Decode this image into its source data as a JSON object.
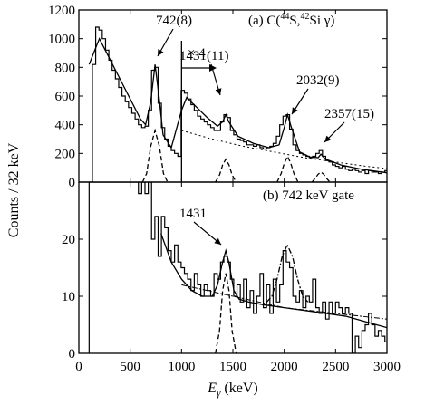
{
  "chart_data": [
    {
      "type": "line",
      "panel_label": "(a) C(",
      "panel_label_sup1": "44",
      "panel_label_mid": "S,",
      "panel_label_sup2": "42",
      "panel_label_end": "Si γ)",
      "xlim": [
        0,
        3000
      ],
      "ylim": [
        0,
        1200
      ],
      "yticks": [
        0,
        200,
        400,
        600,
        800,
        1000,
        1200
      ],
      "scale_note": "× 4",
      "scale_break_x": 1000,
      "annotations": [
        {
          "text": "742(8)",
          "x": 742,
          "y": 820
        },
        {
          "text": "1431(11)",
          "x": 1431,
          "y": 570
        },
        {
          "text": "2032(9)",
          "x": 2032,
          "y": 470
        },
        {
          "text": "2357(15)",
          "x": 2357,
          "y": 280
        }
      ],
      "series": [
        {
          "style": "histogram",
          "x": [
            100,
            132,
            164,
            196,
            228,
            260,
            292,
            324,
            356,
            388,
            420,
            452,
            484,
            516,
            548,
            580,
            612,
            644,
            676,
            708,
            740,
            772,
            804,
            836,
            868,
            900,
            932,
            964,
            996,
            1028,
            1060,
            1092,
            1124,
            1156,
            1188,
            1220,
            1252,
            1284,
            1316,
            1348,
            1380,
            1412,
            1444,
            1476,
            1508,
            1540,
            1572,
            1604,
            1636,
            1668,
            1700,
            1732,
            1764,
            1796,
            1828,
            1860,
            1892,
            1924,
            1956,
            1988,
            2020,
            2052,
            2084,
            2116,
            2148,
            2180,
            2212,
            2244,
            2276,
            2308,
            2340,
            2372,
            2404,
            2436,
            2468,
            2500,
            2532,
            2564,
            2596,
            2628,
            2660,
            2692,
            2724,
            2756,
            2788,
            2820,
            2852,
            2884,
            2916,
            2948,
            2980
          ],
          "values": [
            0,
            820,
            1080,
            1060,
            1000,
            920,
            850,
            780,
            720,
            660,
            600,
            560,
            520,
            480,
            440,
            400,
            380,
            390,
            500,
            780,
            800,
            550,
            380,
            300,
            250,
            220,
            200,
            180,
            640,
            620,
            580,
            540,
            500,
            460,
            440,
            420,
            400,
            380,
            360,
            360,
            420,
            470,
            450,
            360,
            330,
            300,
            290,
            280,
            260,
            260,
            250,
            260,
            240,
            230,
            240,
            250,
            270,
            320,
            400,
            460,
            470,
            370,
            260,
            220,
            200,
            190,
            180,
            170,
            180,
            200,
            220,
            180,
            150,
            140,
            120,
            110,
            100,
            110,
            90,
            80,
            90,
            80,
            70,
            80,
            60,
            80,
            70,
            70,
            60,
            70,
            80
          ]
        },
        {
          "style": "fit",
          "x": [
            100,
            200,
            300,
            400,
            500,
            600,
            650,
            700,
            742,
            780,
            820,
            900,
            1000,
            1050,
            1150,
            1250,
            1350,
            1400,
            1431,
            1460,
            1550,
            1700,
            1850,
            1950,
            2000,
            2032,
            2070,
            2150,
            2250,
            2330,
            2357,
            2400,
            2550,
            2750,
            3000
          ],
          "values": [
            820,
            1000,
            860,
            720,
            580,
            440,
            400,
            560,
            820,
            600,
            330,
            240,
            500,
            590,
            520,
            450,
            390,
            420,
            470,
            420,
            320,
            270,
            240,
            260,
            380,
            470,
            380,
            210,
            175,
            170,
            195,
            160,
            120,
            90,
            65
          ]
        },
        {
          "style": "background",
          "x": [
            1000,
            1300,
            1600,
            1900,
            2200,
            2500,
            2800,
            3000
          ],
          "values": [
            360,
            300,
            250,
            210,
            170,
            140,
            110,
            95
          ]
        },
        {
          "style": "peak",
          "x": [
            620,
            660,
            700,
            742,
            784,
            824,
            864
          ],
          "values": [
            0,
            60,
            250,
            360,
            250,
            60,
            0
          ]
        },
        {
          "style": "peak",
          "x": [
            1330,
            1370,
            1400,
            1431,
            1462,
            1492,
            1532
          ],
          "values": [
            0,
            50,
            120,
            160,
            120,
            50,
            0
          ]
        },
        {
          "style": "peak",
          "x": [
            1930,
            1970,
            2000,
            2032,
            2064,
            2094,
            2134
          ],
          "values": [
            0,
            60,
            130,
            180,
            130,
            60,
            0
          ]
        },
        {
          "style": "peak",
          "x": [
            2270,
            2300,
            2330,
            2357,
            2384,
            2414,
            2444
          ],
          "values": [
            0,
            25,
            55,
            70,
            55,
            25,
            0
          ]
        }
      ]
    },
    {
      "type": "line",
      "panel_label": "(b) 742 keV gate",
      "xlim": [
        0,
        3000
      ],
      "ylim": [
        0,
        30
      ],
      "yticks": [
        0,
        10,
        20
      ],
      "xticks": [
        0,
        500,
        1000,
        1500,
        2000,
        2500,
        3000
      ],
      "xlabel_sym": "E",
      "xlabel_sub": "γ",
      "xlabel_unit": " (keV)",
      "annotations": [
        {
          "text": "1431",
          "x": 1431,
          "y": 18
        }
      ],
      "series": [
        {
          "style": "histogram",
          "x": [
            100,
            132,
            164,
            196,
            228,
            260,
            292,
            324,
            356,
            388,
            420,
            452,
            484,
            516,
            548,
            580,
            612,
            644,
            676,
            708,
            740,
            772,
            804,
            836,
            868,
            900,
            932,
            964,
            996,
            1028,
            1060,
            1092,
            1124,
            1156,
            1188,
            1220,
            1252,
            1284,
            1316,
            1348,
            1380,
            1412,
            1444,
            1476,
            1508,
            1540,
            1572,
            1604,
            1636,
            1668,
            1700,
            1732,
            1764,
            1796,
            1828,
            1860,
            1892,
            1924,
            1956,
            1988,
            2020,
            2052,
            2084,
            2116,
            2148,
            2180,
            2212,
            2244,
            2276,
            2308,
            2340,
            2372,
            2404,
            2436,
            2468,
            2500,
            2532,
            2564,
            2596,
            2628,
            2660,
            2692,
            2724,
            2756,
            2788,
            2820,
            2852,
            2884,
            2916,
            2948,
            2980
          ],
          "values": [
            30,
            30,
            30,
            30,
            30,
            30,
            30,
            30,
            30,
            30,
            30,
            30,
            30,
            30,
            30,
            28,
            30,
            28,
            30,
            20,
            24,
            17,
            24,
            22,
            18,
            16,
            19,
            16,
            15,
            14,
            13,
            11,
            14,
            12,
            10,
            12,
            11,
            10,
            14,
            13,
            16,
            17,
            16,
            13,
            10,
            12,
            9,
            13,
            8,
            11,
            7,
            10,
            14,
            8,
            12,
            7,
            13,
            9,
            12,
            18,
            16,
            15,
            10,
            9,
            11,
            8,
            10,
            9,
            13,
            8,
            7,
            9,
            6,
            9,
            7,
            9,
            8,
            7,
            8,
            7,
            0,
            3,
            1,
            4,
            5,
            7,
            5,
            3,
            4,
            3,
            2
          ]
        },
        {
          "style": "fit",
          "x": [
            800,
            900,
            1000,
            1100,
            1200,
            1300,
            1350,
            1400,
            1431,
            1460,
            1510,
            1560,
            1650,
            1800,
            2000,
            2200,
            2400,
            2600,
            2800,
            3000
          ],
          "values": [
            21,
            16,
            13,
            11,
            10,
            10,
            12,
            16,
            18,
            16,
            11,
            9.5,
            9,
            8.5,
            8,
            7.5,
            7,
            6.5,
            5.5,
            4.5
          ]
        },
        {
          "style": "peak",
          "x": [
            1330,
            1370,
            1400,
            1431,
            1462,
            1492,
            1532
          ],
          "values": [
            0,
            4,
            11,
            14,
            11,
            4,
            0
          ]
        },
        {
          "style": "peak-dashdot",
          "x": [
            1830,
            1880,
            1930,
            1980,
            2030,
            2080,
            2130,
            2180,
            2230
          ],
          "values": [
            9,
            10,
            13,
            17,
            19,
            17,
            13,
            10,
            9
          ]
        },
        {
          "style": "background-dashdot",
          "x": [
            1000,
            1500,
            2000,
            2500,
            3000
          ],
          "values": [
            12,
            10,
            8,
            7,
            6
          ]
        }
      ]
    }
  ],
  "ylabel": "Counts / 32 keV"
}
